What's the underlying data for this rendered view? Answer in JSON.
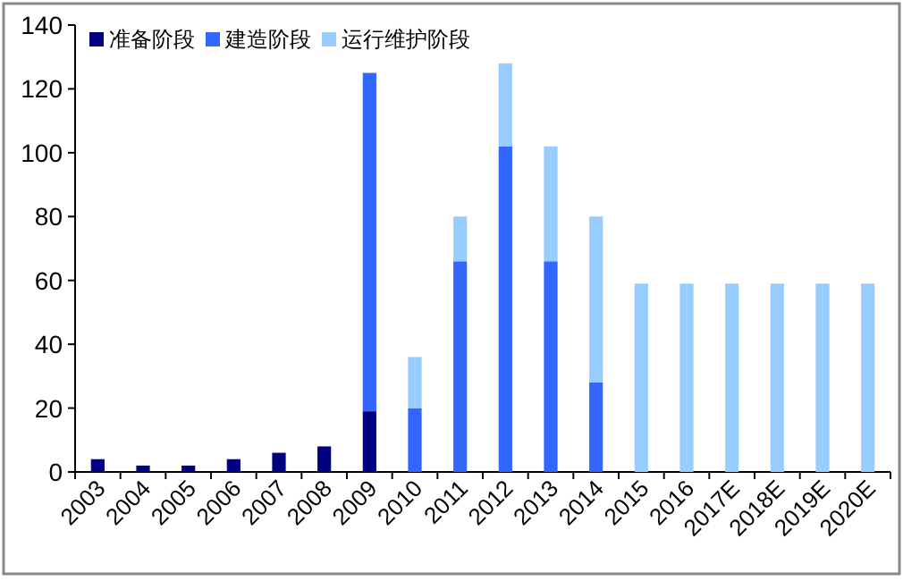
{
  "chart_data": {
    "type": "bar",
    "stacked": true,
    "categories": [
      "2003",
      "2004",
      "2005",
      "2006",
      "2007",
      "2008",
      "2009",
      "2010",
      "2011",
      "2012",
      "2013",
      "2014",
      "2015",
      "2016",
      "2017E",
      "2018E",
      "2019E",
      "2020E"
    ],
    "series": [
      {
        "name": "准备阶段",
        "color": "#000080",
        "values": [
          4,
          2,
          2,
          4,
          6,
          8,
          19,
          null,
          null,
          null,
          null,
          null,
          null,
          null,
          null,
          null,
          null,
          null
        ]
      },
      {
        "name": "建造阶段",
        "color": "#3366ff",
        "values": [
          null,
          null,
          null,
          null,
          null,
          null,
          106,
          20,
          66,
          102,
          66,
          28,
          null,
          null,
          null,
          null,
          null,
          null
        ]
      },
      {
        "name": "运行维护阶段",
        "color": "#99ccff",
        "values": [
          null,
          null,
          null,
          null,
          null,
          null,
          null,
          16,
          14,
          26,
          36,
          52,
          59,
          59,
          59,
          59,
          59,
          59
        ]
      }
    ],
    "ylim": [
      0,
      140
    ],
    "yticks": [
      0,
      20,
      40,
      60,
      80,
      100,
      120,
      140
    ],
    "grid": false,
    "legend": "top left"
  }
}
